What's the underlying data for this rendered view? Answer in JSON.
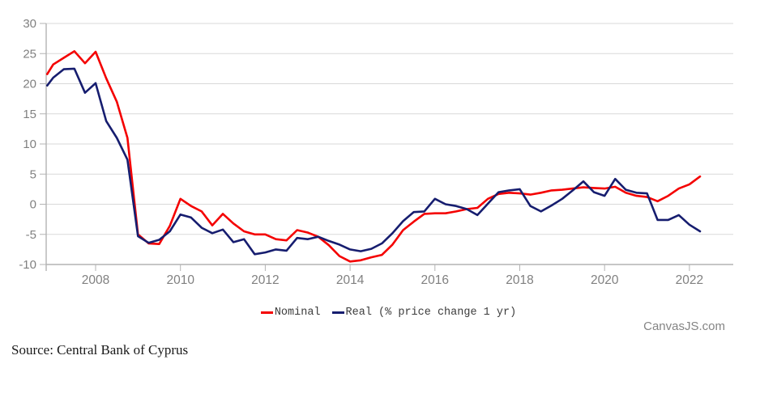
{
  "chart_data": {
    "type": "line",
    "title": "",
    "x_start": 2006.75,
    "x_step": 0.25,
    "x_ticks": [
      2008,
      2010,
      2012,
      2014,
      2016,
      2018,
      2020,
      2022
    ],
    "y_ticks": [
      30,
      25,
      20,
      15,
      10,
      5,
      0,
      -5,
      -10
    ],
    "ylim": [
      -10,
      30
    ],
    "xlim": [
      2006.83,
      2022.95
    ],
    "grid": true,
    "legend_position": "bottom",
    "series": [
      {
        "name": "Nominal",
        "color": "#f40000",
        "values": [
          21.6,
          23.2,
          24.3,
          25.4,
          23.4,
          25.3,
          20.9,
          17.0,
          11.0,
          -5.0,
          -6.5,
          -6.6,
          -3.6,
          0.9,
          -0.3,
          -1.2,
          -3.5,
          -1.6,
          -3.2,
          -4.5,
          -5.0,
          -5.0,
          -5.8,
          -6.0,
          -4.3,
          -4.7,
          -5.4,
          -6.8,
          -8.6,
          -9.5,
          -9.3,
          -8.8,
          -8.4,
          -6.7,
          -4.3,
          -2.9,
          -1.6,
          -1.5,
          -1.5,
          -1.2,
          -0.8,
          -0.6,
          0.9,
          1.7,
          1.9,
          1.8,
          1.6,
          1.9,
          2.3,
          2.4,
          2.6,
          2.8,
          2.7,
          2.6,
          2.9,
          1.9,
          1.4,
          1.2,
          0.5,
          1.4,
          2.6,
          3.3,
          4.6
        ]
      },
      {
        "name": "Real (% price change 1 yr)",
        "color": "#161d6f",
        "values": [
          19.7,
          21.0,
          22.4,
          22.5,
          18.5,
          20.1,
          13.8,
          11.0,
          7.4,
          -5.3,
          -6.4,
          -5.9,
          -4.5,
          -1.7,
          -2.2,
          -3.9,
          -4.8,
          -4.2,
          -6.3,
          -5.8,
          -8.3,
          -8.0,
          -7.5,
          -7.7,
          -5.6,
          -5.8,
          -5.4,
          -6.1,
          -6.7,
          -7.5,
          -7.8,
          -7.4,
          -6.5,
          -4.8,
          -2.8,
          -1.3,
          -1.2,
          0.9,
          0.0,
          -0.3,
          -0.8,
          -1.8,
          0.1,
          2.0,
          2.3,
          2.5,
          -0.3,
          -1.2,
          -0.2,
          0.9,
          2.3,
          3.8,
          2.0,
          1.4,
          4.2,
          2.4,
          1.9,
          1.8,
          -2.6,
          -2.6,
          -1.8,
          -3.4,
          -4.5
        ]
      }
    ],
    "axis_colors": {
      "grid": "#d9d9d9",
      "axis_line": "#b3b3b3",
      "tick": "#b3b3b3",
      "tick_label": "#808080"
    }
  },
  "watermark": "CanvasJS.com",
  "source_note": "Source: Central Bank of Cyprus"
}
